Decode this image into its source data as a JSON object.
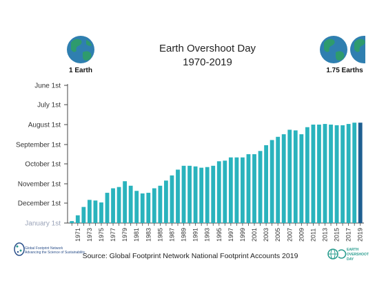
{
  "chart_data": {
    "type": "bar",
    "title": "Earth Overshoot Day",
    "subtitle": "1970-2019",
    "x": [
      1970,
      1971,
      1972,
      1973,
      1974,
      1975,
      1976,
      1977,
      1978,
      1979,
      1980,
      1981,
      1982,
      1983,
      1984,
      1985,
      1986,
      1987,
      1988,
      1989,
      1990,
      1991,
      1992,
      1993,
      1994,
      1995,
      1996,
      1997,
      1998,
      1999,
      2000,
      2001,
      2002,
      2003,
      2004,
      2005,
      2006,
      2007,
      2008,
      2009,
      2010,
      2011,
      2012,
      2013,
      2014,
      2015,
      2016,
      2017,
      2018,
      2019
    ],
    "x_tick_labels": [
      "1971",
      "1973",
      "1975",
      "1977",
      "1979",
      "1981",
      "1983",
      "1985",
      "1987",
      "1989",
      "1991",
      "1993",
      "1995",
      "1997",
      "1999",
      "2001",
      "2003",
      "2005",
      "2007",
      "2009",
      "2011",
      "2013",
      "2015",
      "2017",
      "2019"
    ],
    "values": [
      "Dec 29",
      "Dec 20",
      "Dec 7",
      "Nov 26",
      "Nov 27",
      "Nov 30",
      "Nov 15",
      "Nov 8",
      "Nov 6",
      "Oct 28",
      "Nov 4",
      "Nov 12",
      "Nov 16",
      "Nov 15",
      "Nov 8",
      "Nov 4",
      "Oct 27",
      "Oct 19",
      "Oct 10",
      "Oct 4",
      "Oct 4",
      "Oct 5",
      "Oct 7",
      "Oct 6",
      "Oct 4",
      "Sep 27",
      "Sep 26",
      "Sep 21",
      "Sep 21",
      "Sep 21",
      "Sep 16",
      "Sep 16",
      "Sep 11",
      "Sep 2",
      "Aug 25",
      "Aug 20",
      "Aug 16",
      "Aug 9",
      "Aug 10",
      "Aug 16",
      "Aug 5",
      "Aug 1",
      "Aug 1",
      "Jul 31",
      "Aug 1",
      "Aug 2",
      "Aug 2",
      "Jul 31",
      "Jul 29",
      "Jul 29"
    ],
    "y_tick_labels": [
      "June 1st",
      "July 1st",
      "August 1st",
      "September 1st",
      "October 1st",
      "November 1st",
      "December 1st",
      "January 1st"
    ],
    "ylim": [
      "Jan 1",
      "Jun 1"
    ],
    "highlight_color": "#1f5f91",
    "bar_color": "#2ab3bd",
    "grid": false
  },
  "labels": {
    "left_earth": "1 Earth",
    "right_earth": "1.75 Earths",
    "source": "Source: Global Footprint Network National Footprint Accounts 2019"
  },
  "logos": {
    "gfn_name": "Global Footprint Network",
    "gfn_tagline": "Advancing the Science of Sustainability",
    "eod_line1": "EARTH",
    "eod_line2": "OVERSHOOT",
    "eod_line3": "DAY"
  },
  "colors": {
    "earth_ocean": "#2f7fb0",
    "earth_land": "#2e9b6d",
    "axis": "#444444"
  }
}
